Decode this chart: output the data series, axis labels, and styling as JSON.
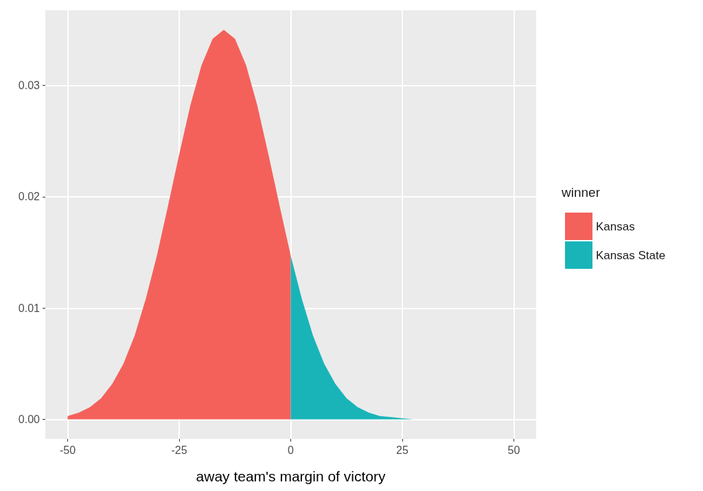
{
  "chart_data": {
    "type": "area",
    "xlabel": "away team's margin of victory",
    "legend_title": "winner",
    "legend": "right",
    "grid": true,
    "xlim": [
      -55,
      55
    ],
    "xticks": [
      -50,
      -25,
      0,
      25,
      50
    ],
    "ylim": [
      -0.00175,
      0.03675
    ],
    "yticks": [
      {
        "value": 0,
        "label": "0.00"
      },
      {
        "value": 0.01,
        "label": "0.01"
      },
      {
        "value": 0.02,
        "label": "0.02"
      },
      {
        "value": 0.03,
        "label": "0.03"
      }
    ],
    "series": [
      {
        "name": "Kansas",
        "color": "#f4615b",
        "x": [
          -50,
          -47.5,
          -45,
          -42.5,
          -40,
          -37.5,
          -35,
          -32.5,
          -30,
          -27.5,
          -25,
          -22.5,
          -20,
          -17.5,
          -15,
          -12.5,
          -10,
          -7.5,
          -5,
          -2.5,
          0
        ],
        "values": [
          0.0003,
          0.0006,
          0.0011,
          0.0019,
          0.0032,
          0.005,
          0.0075,
          0.0108,
          0.0147,
          0.0192,
          0.0238,
          0.0282,
          0.0318,
          0.0342,
          0.035,
          0.0342,
          0.0318,
          0.0282,
          0.0238,
          0.0192,
          0.0147
        ]
      },
      {
        "name": "Kansas State",
        "color": "#19b4b8",
        "x": [
          0,
          2.5,
          5,
          7.5,
          10,
          12.5,
          15,
          17.5,
          20,
          22.5,
          25,
          27.5,
          30,
          35,
          40,
          45,
          50
        ],
        "values": [
          0.0147,
          0.0108,
          0.0075,
          0.005,
          0.0032,
          0.0019,
          0.0011,
          0.0006,
          0.0003,
          0.0002,
          0.0001,
          0,
          0,
          0,
          0,
          0,
          0
        ]
      }
    ]
  }
}
